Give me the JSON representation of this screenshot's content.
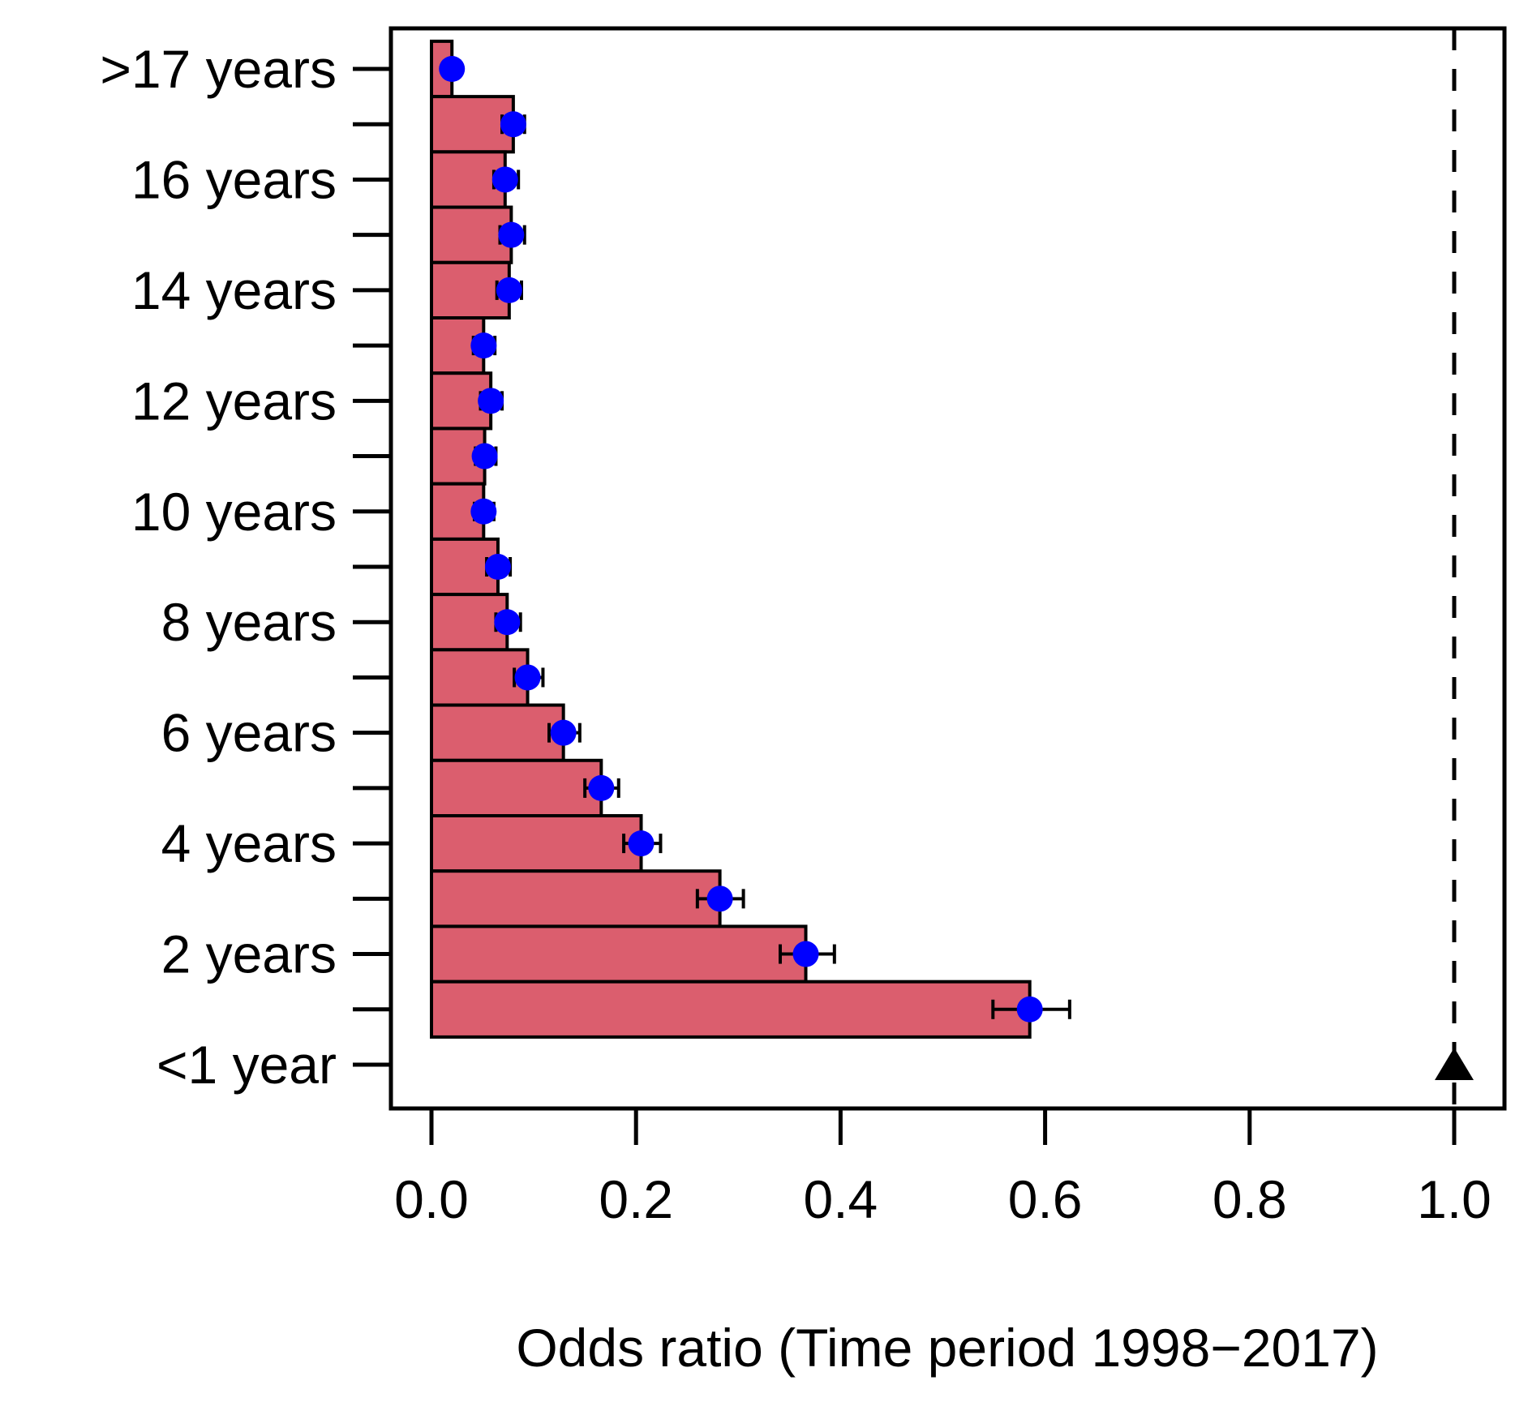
{
  "chart_data": {
    "type": "bar",
    "orientation": "horizontal",
    "xlabel": "Odds ratio (Time period 1998−2017)",
    "xlim": [
      0.0,
      1.0
    ],
    "x_ticks": [
      0.0,
      0.2,
      0.4,
      0.6,
      0.8,
      1.0
    ],
    "x_tick_labels": [
      "0.0",
      "0.2",
      "0.4",
      "0.6",
      "0.8",
      "1.0"
    ],
    "grid": false,
    "legend": "none",
    "reference_line": {
      "x": 1.0,
      "style": "dashed"
    },
    "reference_marker": {
      "row_label": "<1 year",
      "shape": "filled-triangle-up",
      "x": 1.0
    },
    "rows": [
      {
        "label": ">17 years",
        "or": 0.02,
        "ci_low": 0.014,
        "ci_high": 0.027,
        "bar": true
      },
      {
        "label": "",
        "or": 0.08,
        "ci_low": 0.069,
        "ci_high": 0.091,
        "bar": true
      },
      {
        "label": "16 years",
        "or": 0.072,
        "ci_low": 0.061,
        "ci_high": 0.085,
        "bar": true
      },
      {
        "label": "",
        "or": 0.078,
        "ci_low": 0.067,
        "ci_high": 0.091,
        "bar": true
      },
      {
        "label": "14 years",
        "or": 0.076,
        "ci_low": 0.064,
        "ci_high": 0.088,
        "bar": true
      },
      {
        "label": "",
        "or": 0.051,
        "ci_low": 0.041,
        "ci_high": 0.062,
        "bar": true
      },
      {
        "label": "12 years",
        "or": 0.058,
        "ci_low": 0.048,
        "ci_high": 0.069,
        "bar": true
      },
      {
        "label": "",
        "or": 0.052,
        "ci_low": 0.043,
        "ci_high": 0.063,
        "bar": true
      },
      {
        "label": "10 years",
        "or": 0.051,
        "ci_low": 0.042,
        "ci_high": 0.061,
        "bar": true
      },
      {
        "label": "",
        "or": 0.065,
        "ci_low": 0.054,
        "ci_high": 0.077,
        "bar": true
      },
      {
        "label": "8 years",
        "or": 0.074,
        "ci_low": 0.063,
        "ci_high": 0.087,
        "bar": true
      },
      {
        "label": "",
        "or": 0.094,
        "ci_low": 0.081,
        "ci_high": 0.109,
        "bar": true
      },
      {
        "label": "6 years",
        "or": 0.129,
        "ci_low": 0.115,
        "ci_high": 0.145,
        "bar": true
      },
      {
        "label": "",
        "or": 0.166,
        "ci_low": 0.15,
        "ci_high": 0.183,
        "bar": true
      },
      {
        "label": "4 years",
        "or": 0.205,
        "ci_low": 0.188,
        "ci_high": 0.224,
        "bar": true
      },
      {
        "label": "",
        "or": 0.282,
        "ci_low": 0.26,
        "ci_high": 0.305,
        "bar": true
      },
      {
        "label": "2 years",
        "or": 0.366,
        "ci_low": 0.341,
        "ci_high": 0.394,
        "bar": true
      },
      {
        "label": "",
        "or": 0.585,
        "ci_low": 0.549,
        "ci_high": 0.624,
        "bar": true
      },
      {
        "label": "<1 year",
        "or": 1.0,
        "ci_low": null,
        "ci_high": null,
        "bar": false
      }
    ],
    "colors": {
      "bar_fill": "#DB5E6E",
      "bar_border": "#000000",
      "point": "#0000FF",
      "error_bar": "#000000",
      "axis": "#000000",
      "reference": "#000000",
      "background": "#FFFFFF"
    }
  }
}
